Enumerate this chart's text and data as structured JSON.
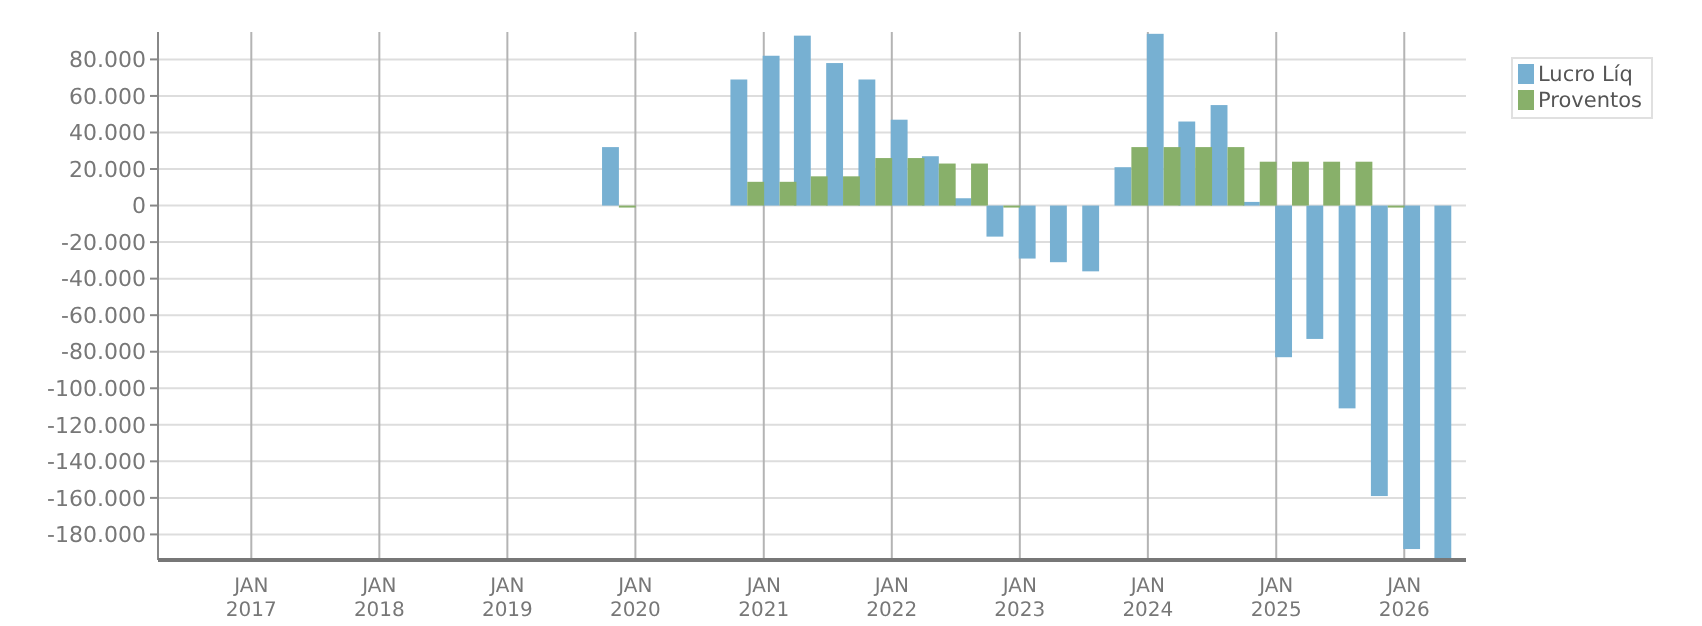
{
  "chart_data": {
    "type": "bar",
    "x": [
      "2019-11-15",
      "2020-11-15",
      "2021-02-15",
      "2021-05-15",
      "2021-08-15",
      "2021-11-15",
      "2022-02-15",
      "2022-05-15",
      "2022-08-15",
      "2022-11-15",
      "2023-02-15",
      "2023-05-15",
      "2023-08-15",
      "2023-11-15",
      "2024-02-15",
      "2024-05-15",
      "2024-08-15",
      "2024-11-15",
      "2025-02-15",
      "2025-05-15",
      "2025-08-15",
      "2025-11-15",
      "2026-02-15",
      "2026-05-15"
    ],
    "series": [
      {
        "name": "Lucro Líq",
        "color": "#77b0d2",
        "values": [
          32000,
          69000,
          82000,
          93000,
          78000,
          69000,
          47000,
          27000,
          4000,
          -17000,
          -29000,
          -31000,
          -36000,
          21000,
          94000,
          46000,
          55000,
          2000,
          -83000,
          -73000,
          -111000,
          -159000,
          -188000,
          -193000
        ]
      },
      {
        "name": "Proventos",
        "color": "#88b06a",
        "values": [
          0,
          13000,
          13000,
          16000,
          16000,
          26000,
          26000,
          23000,
          23000,
          0,
          null,
          null,
          null,
          32000,
          32000,
          32000,
          32000,
          24000,
          24000,
          24000,
          24000,
          0,
          null,
          null
        ]
      }
    ],
    "xlim": [
      "2016-04-10",
      "2026-06-26"
    ],
    "xticks": [
      {
        "value": "2017-01-01",
        "label": "JAN\n2017"
      },
      {
        "value": "2018-01-01",
        "label": "JAN\n2018"
      },
      {
        "value": "2019-01-01",
        "label": "JAN\n2019"
      },
      {
        "value": "2020-01-01",
        "label": "JAN\n2020"
      },
      {
        "value": "2021-01-01",
        "label": "JAN\n2021"
      },
      {
        "value": "2022-01-01",
        "label": "JAN\n2022"
      },
      {
        "value": "2023-01-01",
        "label": "JAN\n2023"
      },
      {
        "value": "2024-01-01",
        "label": "JAN\n2024"
      },
      {
        "value": "2025-01-01",
        "label": "JAN\n2025"
      },
      {
        "value": "2026-01-01",
        "label": "JAN\n2026"
      }
    ],
    "ylim": [
      -194000,
      95000
    ],
    "yticks": [
      {
        "value": 80000,
        "label": "80.000"
      },
      {
        "value": 60000,
        "label": "60.000"
      },
      {
        "value": 40000,
        "label": "40.000"
      },
      {
        "value": 20000,
        "label": "20.000"
      },
      0,
      {
        "value": -20000,
        "label": "-20.000"
      },
      {
        "value": -40000,
        "label": "-40.000"
      },
      {
        "value": -60000,
        "label": "-60.000"
      },
      {
        "value": -80000,
        "label": "-80.000"
      },
      {
        "value": -100000,
        "label": "-100.000"
      },
      {
        "value": -120000,
        "label": "-120.000"
      },
      {
        "value": -140000,
        "label": "-140.000"
      },
      {
        "value": -160000,
        "label": "-160.000"
      },
      {
        "value": -180000,
        "label": "-180.000"
      }
    ],
    "grid": true,
    "legend": "top right"
  }
}
